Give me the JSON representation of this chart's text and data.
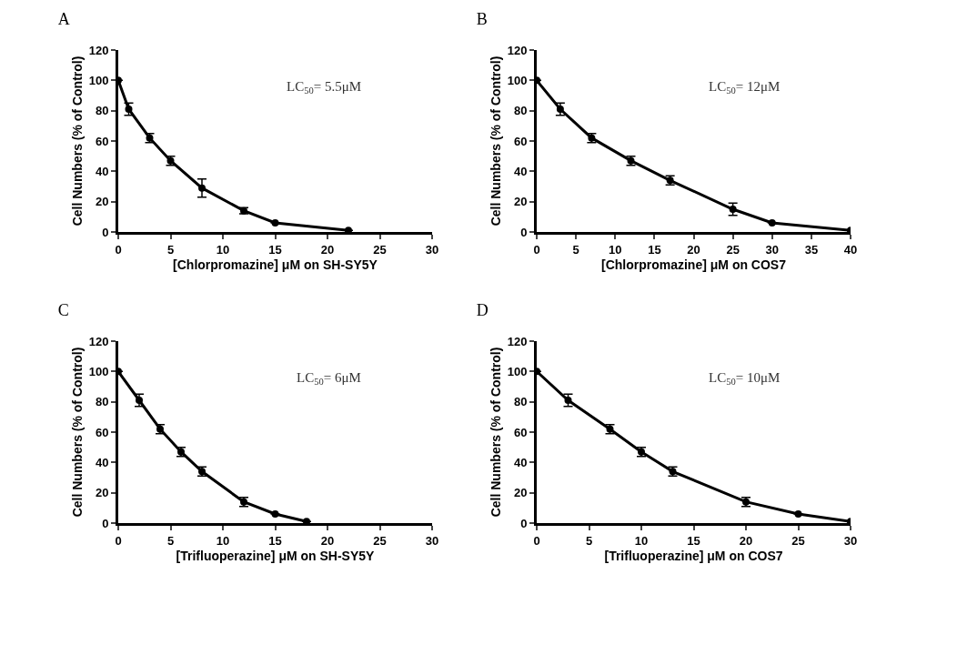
{
  "chart_data": [
    {
      "type": "line",
      "title": "A",
      "xlabel": "[Chlorpromazine] μM on SH-SY5Y",
      "ylabel": "Cell Numbers (% of Control)",
      "annotations": [
        "LC$_{50}$= 5.5μM"
      ],
      "x": [
        0,
        1,
        3,
        5,
        8,
        12,
        15,
        22
      ],
      "series": [
        {
          "color": "#000000",
          "values": [
            100,
            81,
            62,
            47,
            29,
            14,
            6,
            1
          ],
          "errors": [
            null,
            4,
            3,
            3,
            6,
            2,
            null,
            null
          ]
        }
      ],
      "xlim": [
        0,
        30
      ],
      "xticks": [
        0,
        5,
        10,
        15,
        20,
        25,
        30
      ],
      "ylim": [
        0,
        120
      ],
      "yticks": [
        0,
        20,
        40,
        60,
        80,
        100,
        120
      ],
      "grid": false,
      "marker": "circle",
      "line_style": "solid"
    },
    {
      "type": "line",
      "title": "B",
      "xlabel": "[Chlorpromazine] μM on COS7",
      "ylabel": "Cell Numbers (% of Control)",
      "annotations": [
        "LC$_{50}$= 12μM"
      ],
      "x": [
        0,
        3,
        7,
        12,
        17,
        25,
        30,
        40
      ],
      "series": [
        {
          "color": "#000000",
          "values": [
            100,
            81,
            62,
            47,
            34,
            15,
            6,
            1
          ],
          "errors": [
            null,
            4,
            3,
            3,
            3,
            4,
            null,
            null
          ]
        }
      ],
      "xlim": [
        0,
        40
      ],
      "xticks": [
        0,
        5,
        10,
        15,
        20,
        25,
        30,
        35,
        40
      ],
      "ylim": [
        0,
        120
      ],
      "yticks": [
        0,
        20,
        40,
        60,
        80,
        100,
        120
      ],
      "grid": false,
      "marker": "circle",
      "line_style": "solid"
    },
    {
      "type": "line",
      "title": "C",
      "xlabel": "[Trifluoperazine] μM on SH-SY5Y",
      "ylabel": "Cell Numbers (% of Control)",
      "annotations": [
        "LC$_{50}$= 6μM"
      ],
      "x": [
        0,
        2,
        4,
        6,
        8,
        12,
        15,
        18
      ],
      "series": [
        {
          "color": "#000000",
          "values": [
            100,
            81,
            62,
            47,
            34,
            14,
            6,
            1
          ],
          "errors": [
            null,
            4,
            3,
            3,
            3,
            3,
            null,
            null
          ]
        }
      ],
      "xlim": [
        0,
        30
      ],
      "xticks": [
        0,
        5,
        10,
        15,
        20,
        25,
        30
      ],
      "ylim": [
        0,
        120
      ],
      "yticks": [
        0,
        20,
        40,
        60,
        80,
        100,
        120
      ],
      "grid": false,
      "marker": "circle",
      "line_style": "solid"
    },
    {
      "type": "line",
      "title": "D",
      "xlabel": "[Trifluoperazine] μM on COS7",
      "ylabel": "Cell Numbers (% of Control)",
      "annotations": [
        "LC$_{50}$= 10μM"
      ],
      "x": [
        0,
        3,
        7,
        10,
        13,
        20,
        25,
        30
      ],
      "series": [
        {
          "color": "#000000",
          "values": [
            100,
            81,
            62,
            47,
            34,
            14,
            6,
            1
          ],
          "errors": [
            null,
            4,
            3,
            3,
            3,
            3,
            null,
            null
          ]
        }
      ],
      "xlim": [
        0,
        30
      ],
      "xticks": [
        0,
        5,
        10,
        15,
        20,
        25,
        30
      ],
      "ylim": [
        0,
        120
      ],
      "yticks": [
        0,
        20,
        40,
        60,
        80,
        100,
        120
      ],
      "grid": false,
      "marker": "circle",
      "line_style": "solid"
    }
  ]
}
